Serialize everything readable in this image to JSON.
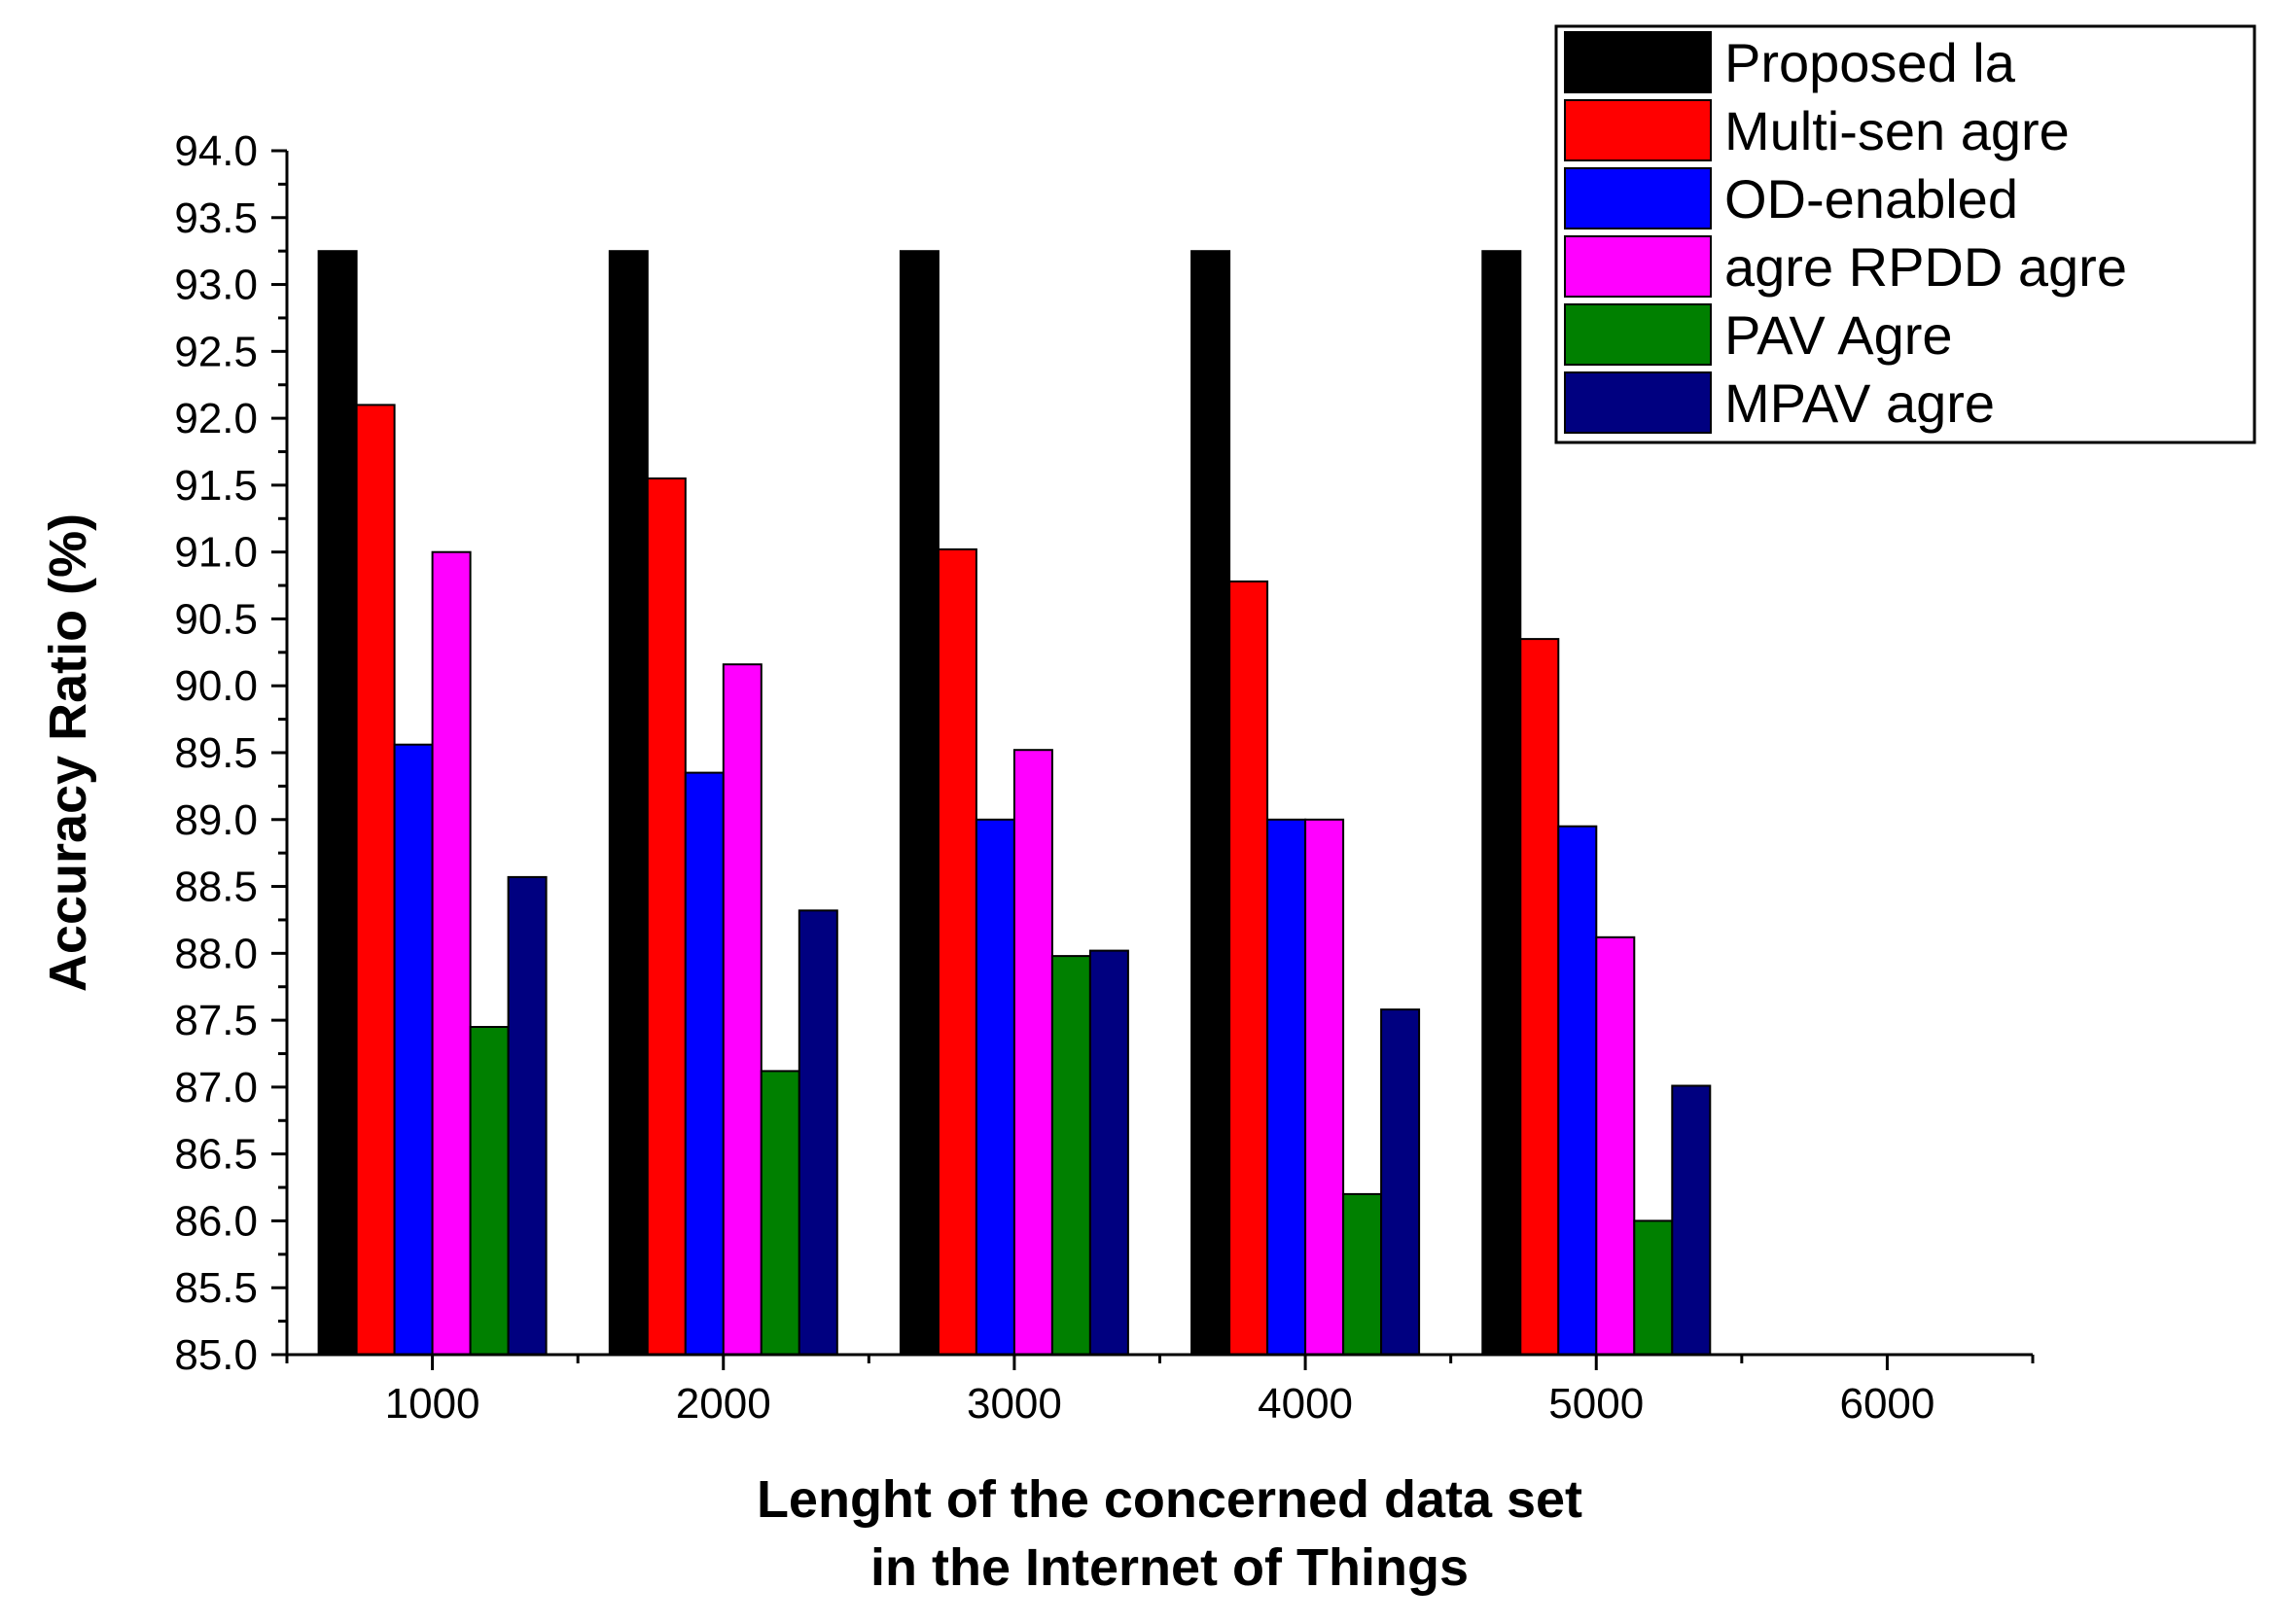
{
  "chart_data": {
    "type": "bar",
    "title": "",
    "xlabel_lines": [
      "Lenght of the concerned data set",
      "in the Internet of Things"
    ],
    "ylabel": "Accuracy Ratio (%)",
    "ylim": [
      85.0,
      94.0
    ],
    "y_ticks": [
      "85.0",
      "85.5",
      "86.0",
      "86.5",
      "87.0",
      "87.5",
      "88.0",
      "88.5",
      "89.0",
      "89.5",
      "90.0",
      "90.5",
      "91.0",
      "91.5",
      "92.0",
      "92.5",
      "93.0",
      "93.5",
      "94.0"
    ],
    "x_range": [
      500,
      6500
    ],
    "x_ticks": [
      "1000",
      "2000",
      "3000",
      "4000",
      "5000",
      "6000"
    ],
    "categories": [
      1000,
      2000,
      3000,
      4000,
      5000
    ],
    "legend_position": "top-right",
    "grid": false,
    "series": [
      {
        "name": "Proposed la",
        "color": "#000000",
        "values": [
          93.25,
          93.25,
          93.25,
          93.25,
          93.25
        ]
      },
      {
        "name": "Multi-sen agre",
        "color": "#ff0000",
        "values": [
          92.1,
          91.55,
          91.02,
          90.78,
          90.35
        ]
      },
      {
        "name": "OD-enabled",
        "color": "#0000ff",
        "values": [
          89.56,
          89.35,
          89.0,
          89.0,
          88.95
        ]
      },
      {
        "name": "agre RPDD agre",
        "color": "#ff00ff",
        "values": [
          91.0,
          90.16,
          89.52,
          89.0,
          88.12
        ]
      },
      {
        "name": "PAV Agre",
        "color": "#008000",
        "values": [
          87.45,
          87.12,
          87.98,
          86.2,
          86.0
        ]
      },
      {
        "name": "MPAV agre",
        "color": "#000080",
        "values": [
          88.57,
          88.32,
          88.02,
          87.58,
          87.01
        ]
      }
    ]
  }
}
